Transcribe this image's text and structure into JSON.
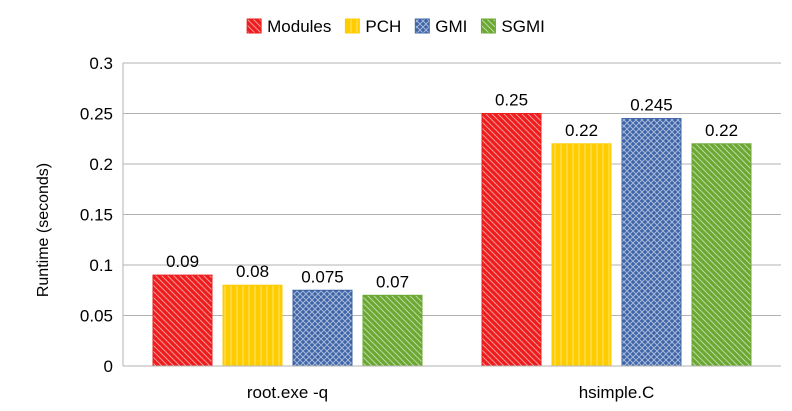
{
  "chart_data": {
    "type": "bar",
    "categories": [
      "root.exe -q",
      "hsimple.C"
    ],
    "series": [
      {
        "name": "Modules",
        "values": [
          0.09,
          0.25
        ],
        "color": "#ee1c1c",
        "pattern": "diagonal-down"
      },
      {
        "name": "PCH",
        "values": [
          0.08,
          0.22
        ],
        "color": "#ffcc00",
        "pattern": "vertical"
      },
      {
        "name": "GMI",
        "values": [
          0.075,
          0.245
        ],
        "color": "#3e64a8",
        "pattern": "crosshatch"
      },
      {
        "name": "SGMI",
        "values": [
          0.07,
          0.22
        ],
        "color": "#6aa832",
        "pattern": "diagonal-down"
      }
    ],
    "data_labels": [
      [
        "0.09",
        "0.25"
      ],
      [
        "0.08",
        "0.22"
      ],
      [
        "0.075",
        "0.245"
      ],
      [
        "0.07",
        "0.22"
      ]
    ],
    "yticks": [
      "0",
      "0.05",
      "0.1",
      "0.15",
      "0.2",
      "0.25",
      "0.3"
    ],
    "ylim": [
      0,
      0.3
    ],
    "ylabel": "Runtime (seconds)",
    "xlabel": "",
    "title": "",
    "grid": true,
    "legend_position": "top-center"
  }
}
